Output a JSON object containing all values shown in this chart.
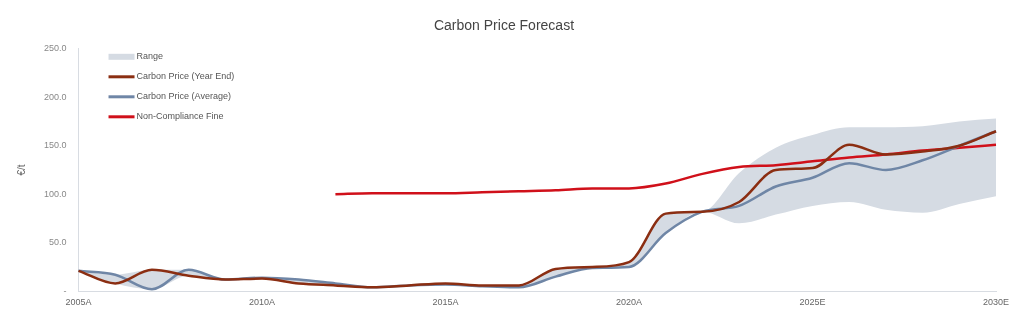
{
  "chart_data": {
    "type": "line",
    "title": "Carbon Price Forecast",
    "ylabel": "€/t",
    "categories": [
      "2005A",
      null,
      null,
      null,
      null,
      "2010A",
      null,
      null,
      null,
      null,
      "2015A",
      null,
      null,
      null,
      null,
      "2020A",
      null,
      null,
      null,
      null,
      "2025E",
      null,
      null,
      null,
      null,
      "2030E"
    ],
    "series": [
      {
        "name": "Range",
        "type": "area",
        "color": "#d5dbe3",
        "values": [
          null,
          null,
          null,
          null,
          null,
          null,
          null,
          null,
          null,
          null,
          null,
          null,
          null,
          null,
          null,
          null,
          null,
          null,
          null,
          null,
          null,
          null,
          null,
          null,
          null,
          null
        ],
        "lower": [
          20,
          8,
          2,
          16,
          12,
          13,
          8,
          6,
          4,
          6,
          7,
          5,
          4,
          15,
          24,
          25,
          60,
          82,
          70,
          79,
          88,
          92,
          84,
          81,
          90,
          98
        ],
        "upper": [
          21,
          17,
          22,
          22,
          12,
          14,
          12,
          8,
          4,
          6,
          8,
          6,
          6,
          23,
          25,
          30,
          80,
          82,
          122,
          148,
          161,
          169,
          169,
          170,
          175,
          178
        ]
      },
      {
        "name": "Carbon Price (Year End)",
        "color": "#8b2e12",
        "values": [
          21,
          8,
          22,
          16,
          12,
          13,
          8,
          6,
          4,
          6,
          8,
          6,
          6,
          23,
          25,
          30,
          80,
          82,
          92,
          125,
          127,
          151,
          141,
          144,
          150,
          165
        ]
      },
      {
        "name": "Carbon Price (Average)",
        "color": "#6f86a6",
        "values": [
          21,
          17,
          2,
          22,
          12,
          14,
          12,
          8,
          4,
          6,
          7,
          5,
          4,
          15,
          24,
          25,
          60,
          82,
          88,
          108,
          117,
          132,
          125,
          135,
          150,
          165
        ]
      },
      {
        "name": "Non-Compliance Fine",
        "color": "#d0101a",
        "values": [
          null,
          null,
          null,
          null,
          null,
          null,
          null,
          100,
          101,
          101,
          101,
          102,
          103,
          104,
          106,
          106,
          111,
          121,
          128,
          130,
          134,
          138,
          141,
          145,
          148,
          151
        ]
      }
    ],
    "ylim": [
      0,
      250
    ],
    "yticks": [
      {
        "value": 0,
        "label": "-"
      },
      {
        "value": 50,
        "label": "50.0"
      },
      {
        "value": 100,
        "label": "100.0"
      },
      {
        "value": 150,
        "label": "150.0"
      },
      {
        "value": 200,
        "label": "200.0"
      },
      {
        "value": 250,
        "label": "250.0"
      }
    ],
    "grid": false,
    "legend": "top left",
    "marker": "none",
    "line_style": "solid"
  }
}
